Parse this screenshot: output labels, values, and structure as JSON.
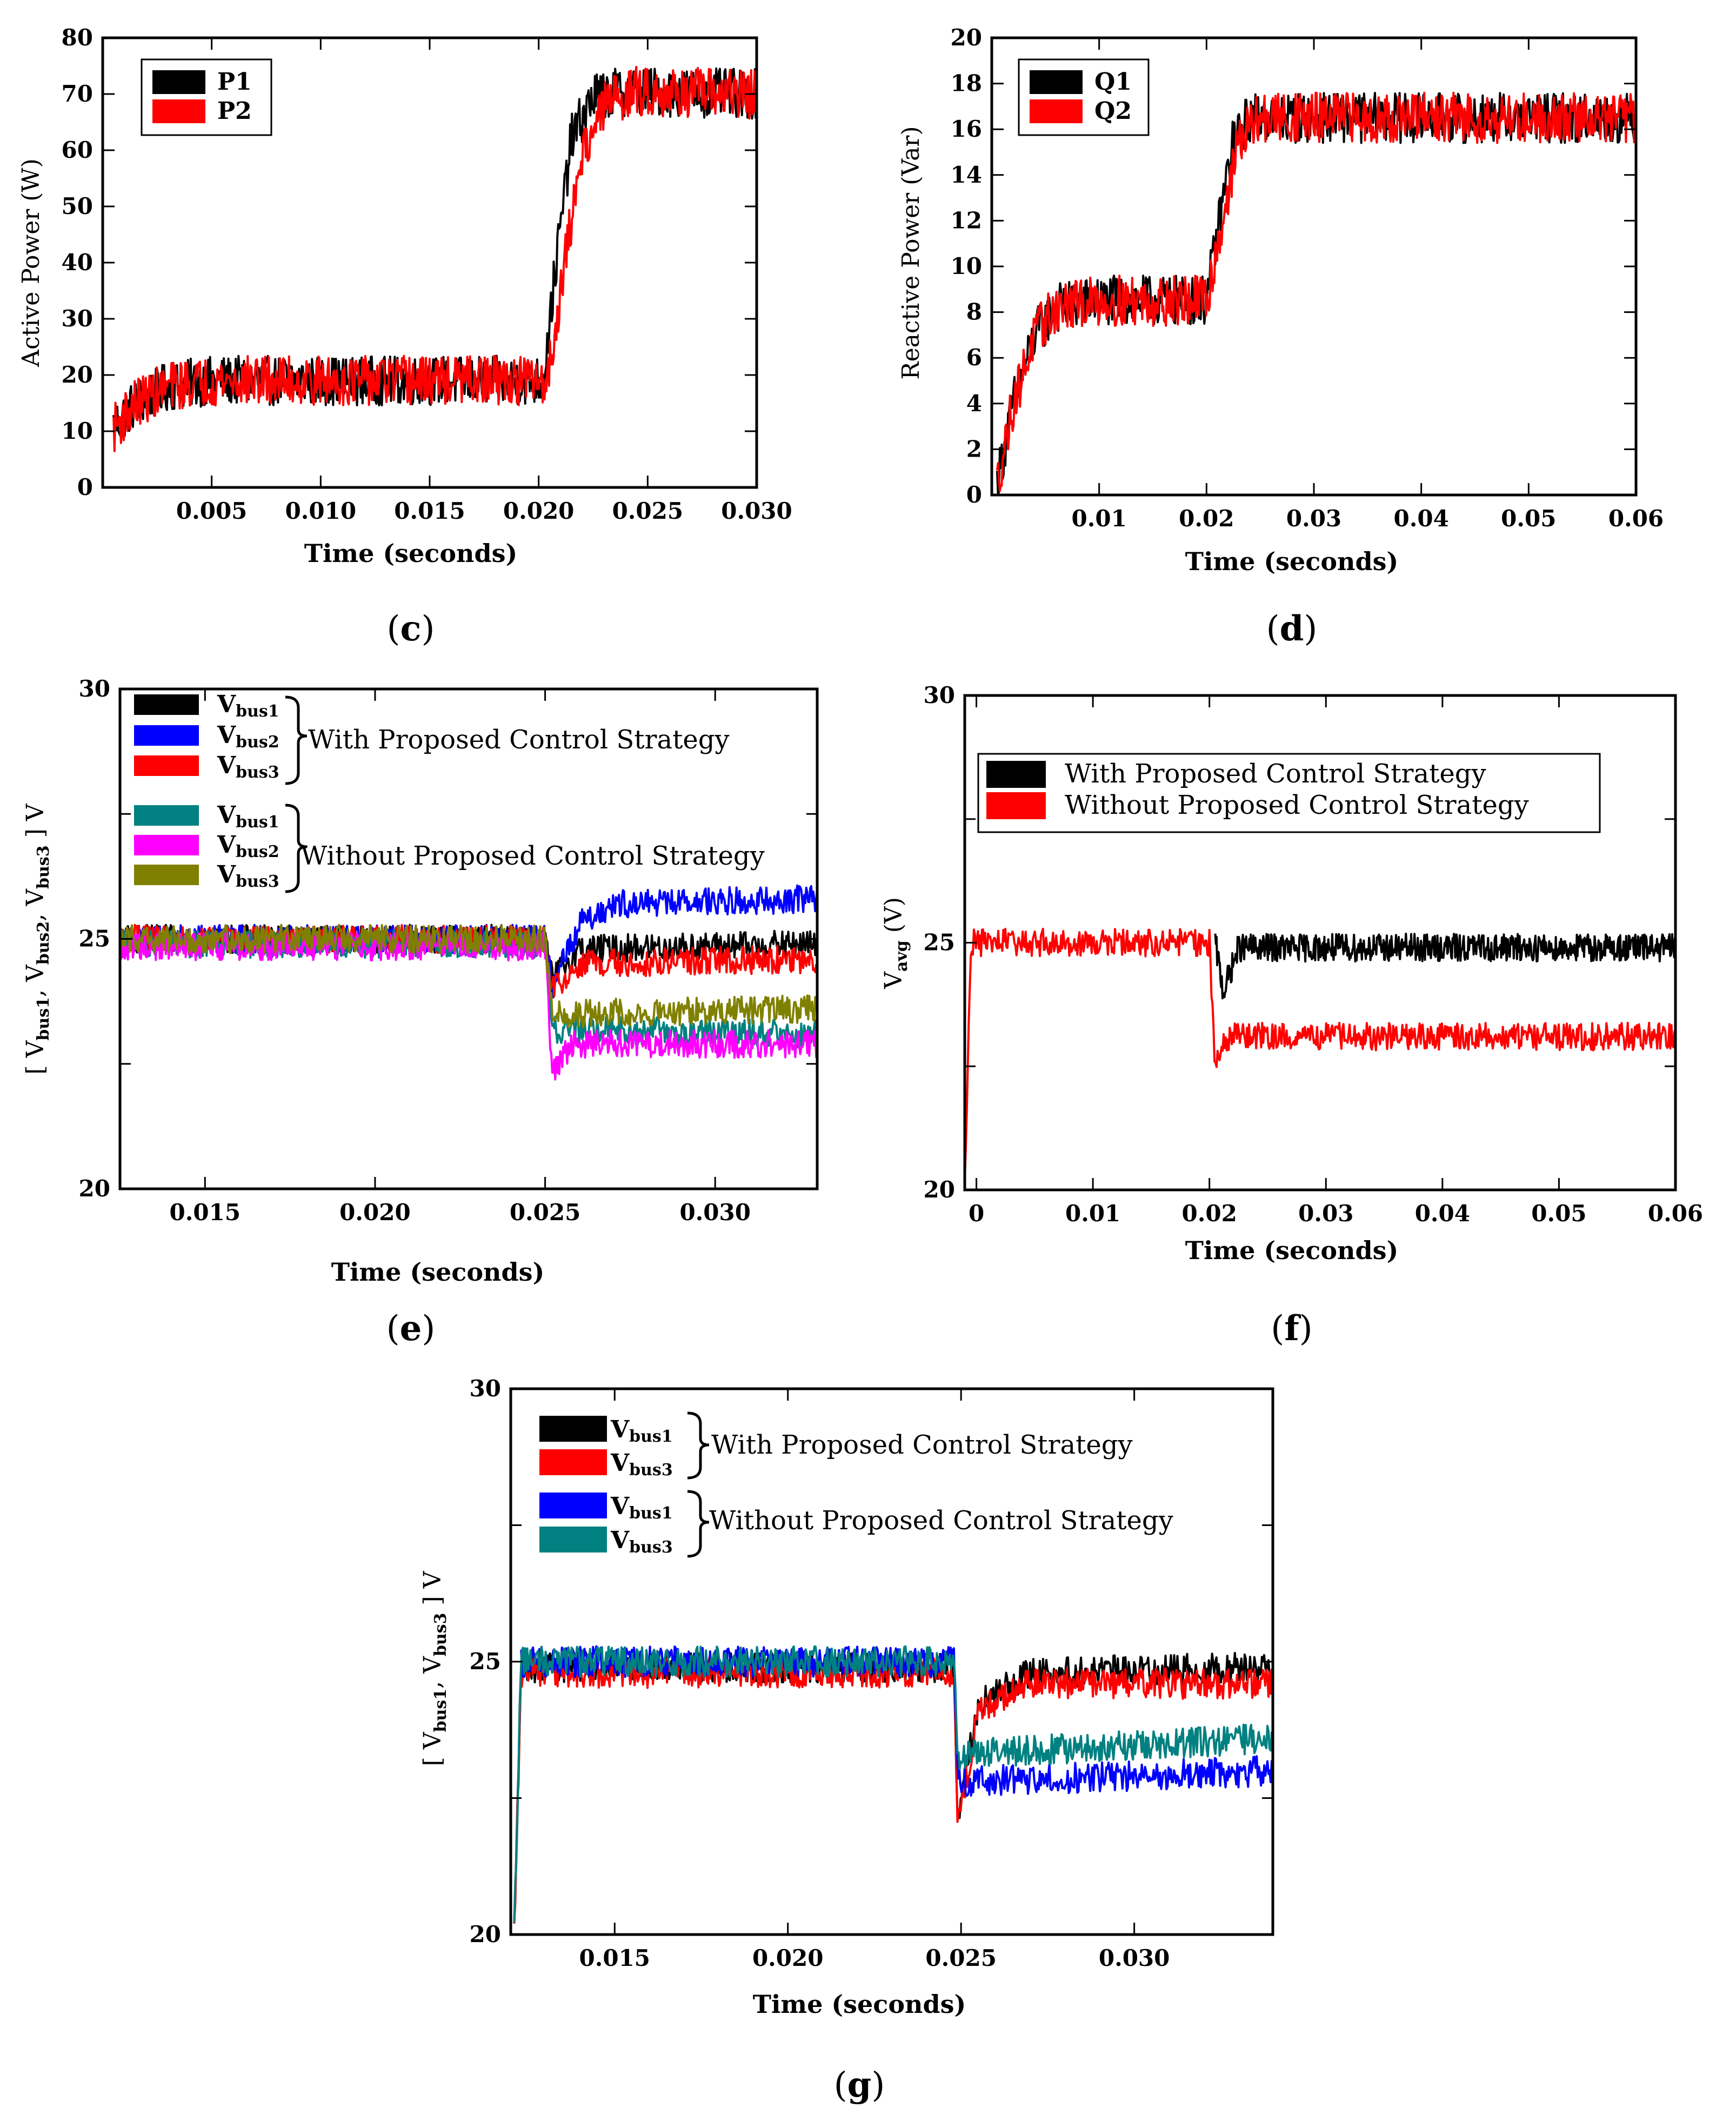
{
  "figure": {
    "caption_c": "c",
    "caption_d": "d",
    "caption_e": "e",
    "caption_f": "f",
    "caption_g": "g"
  },
  "chart_data": [
    {
      "id": "c",
      "type": "line",
      "xlabel": "Time (seconds)",
      "ylabel": "Active Power (W)",
      "xlim": [
        0,
        0.03
      ],
      "ylim": [
        0,
        80
      ],
      "xticks": [
        "0.005",
        "0.010",
        "0.015",
        "0.020",
        "0.025",
        "0.030"
      ],
      "yticks": [
        "0",
        "10",
        "20",
        "30",
        "40",
        "50",
        "60",
        "70",
        "80"
      ],
      "legend": [
        {
          "name": "P1",
          "color": "#000000"
        },
        {
          "name": "P2",
          "color": "#ff0000"
        }
      ],
      "series": [
        {
          "name": "P1",
          "color": "#000000",
          "points": [
            [
              0.0005,
              11
            ],
            [
              0.0015,
              15
            ],
            [
              0.003,
              18
            ],
            [
              0.005,
              19
            ],
            [
              0.01,
              19
            ],
            [
              0.015,
              19
            ],
            [
              0.0202,
              19
            ],
            [
              0.0208,
              40
            ],
            [
              0.0215,
              62
            ],
            [
              0.0225,
              69.5
            ],
            [
              0.024,
              70.5
            ],
            [
              0.03,
              70
            ]
          ]
        },
        {
          "name": "P2",
          "color": "#ff0000",
          "points": [
            [
              0.0005,
              10.5
            ],
            [
              0.0015,
              15
            ],
            [
              0.003,
              18
            ],
            [
              0.005,
              19
            ],
            [
              0.01,
              19
            ],
            [
              0.015,
              19
            ],
            [
              0.0204,
              19
            ],
            [
              0.0212,
              40
            ],
            [
              0.022,
              60
            ],
            [
              0.0232,
              69
            ],
            [
              0.0245,
              70.5
            ],
            [
              0.03,
              70
            ]
          ]
        }
      ]
    },
    {
      "id": "d",
      "type": "line",
      "xlabel": "Time (seconds)",
      "ylabel": "Reactive Power (Var)",
      "xlim": [
        0,
        0.06
      ],
      "ylim": [
        0,
        20
      ],
      "xticks": [
        "0.01",
        "0.02",
        "0.03",
        "0.04",
        "0.05",
        "0.06"
      ],
      "yticks": [
        "0",
        "2",
        "4",
        "6",
        "8",
        "10",
        "12",
        "14",
        "16",
        "18",
        "20"
      ],
      "legend": [
        {
          "name": "Q1",
          "color": "#000000"
        },
        {
          "name": "Q2",
          "color": "#ff0000"
        }
      ],
      "series": [
        {
          "name": "Q1",
          "color": "#000000",
          "points": [
            [
              0.0005,
              0.5
            ],
            [
              0.002,
              4
            ],
            [
              0.004,
              7
            ],
            [
              0.006,
              8.2
            ],
            [
              0.01,
              8.5
            ],
            [
              0.02,
              8.5
            ],
            [
              0.0212,
              12
            ],
            [
              0.0225,
              15.5
            ],
            [
              0.024,
              16.5
            ],
            [
              0.06,
              16.5
            ]
          ]
        },
        {
          "name": "Q2",
          "color": "#ff0000",
          "points": [
            [
              0.0005,
              0.5
            ],
            [
              0.002,
              4
            ],
            [
              0.004,
              7
            ],
            [
              0.006,
              8.2
            ],
            [
              0.01,
              8.5
            ],
            [
              0.02,
              8.5
            ],
            [
              0.0215,
              12
            ],
            [
              0.023,
              15.5
            ],
            [
              0.025,
              16.5
            ],
            [
              0.06,
              16.5
            ]
          ]
        }
      ]
    },
    {
      "id": "e",
      "type": "line",
      "xlabel": "Time (seconds)",
      "ylabel_parts": [
        "[ V",
        "bus1",
        ", V",
        "bus2",
        ", V",
        "bus3",
        " ] V"
      ],
      "xlim": [
        0.0125,
        0.033
      ],
      "ylim": [
        20,
        30
      ],
      "xticks": [
        "0.015",
        "0.020",
        "0.025",
        "0.030"
      ],
      "yticks": [
        "20",
        "25",
        "30"
      ],
      "legend_group_with": "With Proposed Control Strategy",
      "legend_group_without": "Without Proposed Control Strategy",
      "legend_prefix": "V",
      "legend": [
        {
          "sub": "bus1",
          "color": "#000000"
        },
        {
          "sub": "bus2",
          "color": "#0000ff"
        },
        {
          "sub": "bus3",
          "color": "#ff0000"
        },
        {
          "sub": "bus1",
          "color": "#008080"
        },
        {
          "sub": "bus2",
          "color": "#ff00ff"
        },
        {
          "sub": "bus3",
          "color": "#808000"
        }
      ],
      "series": [
        {
          "name": "Vbus1 with",
          "color": "#000000",
          "points": [
            [
              0.0125,
              25
            ],
            [
              0.025,
              25
            ],
            [
              0.0252,
              24.2
            ],
            [
              0.026,
              24.8
            ],
            [
              0.033,
              24.9
            ]
          ]
        },
        {
          "name": "Vbus2 with",
          "color": "#0000ff",
          "points": [
            [
              0.0125,
              25
            ],
            [
              0.025,
              25
            ],
            [
              0.0252,
              24
            ],
            [
              0.026,
              25.3
            ],
            [
              0.027,
              25.7
            ],
            [
              0.033,
              25.8
            ]
          ]
        },
        {
          "name": "Vbus3 with",
          "color": "#ff0000",
          "points": [
            [
              0.0125,
              25
            ],
            [
              0.025,
              25
            ],
            [
              0.0252,
              24
            ],
            [
              0.026,
              24.5
            ],
            [
              0.033,
              24.6
            ]
          ]
        },
        {
          "name": "Vbus1 without",
          "color": "#008080",
          "points": [
            [
              0.0125,
              24.9
            ],
            [
              0.025,
              24.9
            ],
            [
              0.0252,
              23.2
            ],
            [
              0.033,
              23.1
            ]
          ]
        },
        {
          "name": "Vbus2 without",
          "color": "#ff00ff",
          "points": [
            [
              0.0125,
              24.85
            ],
            [
              0.025,
              24.85
            ],
            [
              0.0252,
              22.3
            ],
            [
              0.0258,
              22.9
            ],
            [
              0.033,
              22.9
            ]
          ]
        },
        {
          "name": "Vbus3 without",
          "color": "#808000",
          "points": [
            [
              0.0125,
              25
            ],
            [
              0.025,
              25
            ],
            [
              0.0252,
              23.5
            ],
            [
              0.033,
              23.6
            ]
          ]
        }
      ]
    },
    {
      "id": "f",
      "type": "line",
      "xlabel": "Time (seconds)",
      "ylabel_parts": [
        "V",
        "avg",
        " (V)"
      ],
      "xlim": [
        -0.001,
        0.06
      ],
      "ylim": [
        20,
        30
      ],
      "xticks": [
        "0",
        "0.01",
        "0.02",
        "0.03",
        "0.04",
        "0.05",
        "0.06"
      ],
      "yticks": [
        "20",
        "25",
        "30"
      ],
      "legend": [
        {
          "name": "With Proposed Control Strategy",
          "color": "#000000"
        },
        {
          "name": "Without Proposed Control Strategy",
          "color": "#ff0000"
        }
      ],
      "series": [
        {
          "name": "With Proposed Control Strategy",
          "color": "#000000",
          "points": [
            [
              0.0205,
              25
            ],
            [
              0.0212,
              24
            ],
            [
              0.0225,
              24.9
            ],
            [
              0.06,
              24.9
            ]
          ]
        },
        {
          "name": "Without Proposed Control Strategy",
          "color": "#ff0000",
          "points": [
            [
              -0.001,
              20
            ],
            [
              -0.0005,
              25
            ],
            [
              0.02,
              25
            ],
            [
              0.0205,
              22.4
            ],
            [
              0.0215,
              23.1
            ],
            [
              0.06,
              23.1
            ]
          ]
        }
      ]
    },
    {
      "id": "g",
      "type": "line",
      "xlabel": "Time (seconds)",
      "ylabel_parts": [
        "[ V",
        "bus1",
        ", V",
        "bus3",
        " ] V"
      ],
      "xlim": [
        0.012,
        0.034
      ],
      "ylim": [
        20,
        30
      ],
      "xticks": [
        "0.015",
        "0.020",
        "0.025",
        "0.030"
      ],
      "yticks": [
        "20",
        "25",
        "30"
      ],
      "legend_group_with": "With Proposed Control Strategy",
      "legend_group_without": "Without Proposed Control Strategy",
      "legend_prefix": "V",
      "legend": [
        {
          "sub": "bus1",
          "color": "#000000"
        },
        {
          "sub": "bus3",
          "color": "#ff0000"
        },
        {
          "sub": "bus1",
          "color": "#0000ff"
        },
        {
          "sub": "bus3",
          "color": "#008080"
        }
      ],
      "series": [
        {
          "name": "Vbus1 with",
          "color": "#000000",
          "points": [
            [
              0.0121,
              20
            ],
            [
              0.0123,
              24.9
            ],
            [
              0.0248,
              24.9
            ],
            [
              0.0249,
              22.2
            ],
            [
              0.0255,
              24.2
            ],
            [
              0.027,
              24.8
            ],
            [
              0.034,
              24.9
            ]
          ]
        },
        {
          "name": "Vbus3 with",
          "color": "#ff0000",
          "points": [
            [
              0.0121,
              20
            ],
            [
              0.0123,
              24.8
            ],
            [
              0.0248,
              24.8
            ],
            [
              0.0249,
              22
            ],
            [
              0.0255,
              24.1
            ],
            [
              0.027,
              24.6
            ],
            [
              0.034,
              24.6
            ]
          ]
        },
        {
          "name": "Vbus1 without",
          "color": "#0000ff",
          "points": [
            [
              0.0123,
              25
            ],
            [
              0.0248,
              25
            ],
            [
              0.0249,
              22.8
            ],
            [
              0.034,
              23
            ]
          ]
        },
        {
          "name": "Vbus3 without",
          "color": "#008080",
          "points": [
            [
              0.0121,
              20
            ],
            [
              0.0123,
              25
            ],
            [
              0.0248,
              25
            ],
            [
              0.0249,
              23.3
            ],
            [
              0.034,
              23.6
            ]
          ]
        }
      ]
    }
  ]
}
